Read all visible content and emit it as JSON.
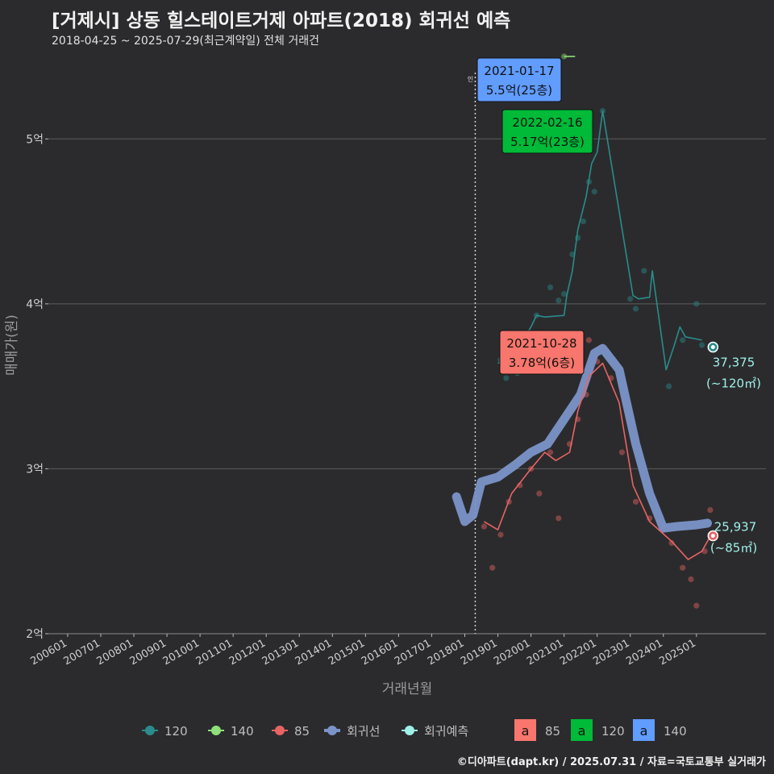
{
  "header": {
    "title": "[거제시] 상동 힐스테이트거제 아파트(2018) 회귀선 예측",
    "subtitle": "2018-04-25 ~ 2025-07-29(최근계약일) 전체 거래건"
  },
  "footer": {
    "credit": "©디아파트(dapt.kr) / 2025.07.31 / 자료=국토교통부 실거래가"
  },
  "colors": {
    "background": "#2b2b2d",
    "grid": "#5c5c5c",
    "s120": "#2a8c8c",
    "s140": "#8fe07a",
    "s85": "#e86464",
    "regression": "#7b93c8",
    "forecast": "#9ff0e8",
    "label85": "#f8766d",
    "label120": "#00ba38",
    "label140": "#619cff"
  },
  "chart_data": {
    "type": "line",
    "xlabel": "거래년월",
    "ylabel": "매매가(원)",
    "x_ticks": [
      "200601",
      "200701",
      "200801",
      "200901",
      "201001",
      "201101",
      "201201",
      "201301",
      "201401",
      "201501",
      "201601",
      "201701",
      "201801",
      "201901",
      "202001",
      "202101",
      "202201",
      "202301",
      "202401",
      "202501"
    ],
    "y_ticks": [
      "2억",
      "3억",
      "4억",
      "5억"
    ],
    "ylim": [
      20000,
      55000
    ],
    "vline_date": "2018-04-25",
    "series": [
      {
        "name": "120",
        "color": "#2a8c8c",
        "line": [
          [
            "2019-01",
            36400
          ],
          [
            "2019-06",
            36700
          ],
          [
            "2020-01",
            38600
          ],
          [
            "2020-03",
            39300
          ],
          [
            "2020-06",
            39200
          ],
          [
            "2021-01",
            39300
          ],
          [
            "2021-02",
            40500
          ],
          [
            "2021-04",
            42000
          ],
          [
            "2021-06",
            44500
          ],
          [
            "2021-09",
            46500
          ],
          [
            "2021-11",
            48500
          ],
          [
            "2022-01",
            49200
          ],
          [
            "2022-03",
            51700
          ],
          [
            "2023-02",
            40500
          ],
          [
            "2023-04",
            40300
          ],
          [
            "2023-08",
            40400
          ],
          [
            "2023-09",
            42000
          ],
          [
            "2024-02",
            36000
          ],
          [
            "2024-05",
            37500
          ],
          [
            "2024-07",
            38600
          ],
          [
            "2024-09",
            38000
          ],
          [
            "2025-03",
            37800
          ]
        ],
        "points": [
          [
            "2019-02",
            36600
          ],
          [
            "2019-04",
            35500
          ],
          [
            "2019-08",
            35800
          ],
          [
            "2020-03",
            39300
          ],
          [
            "2020-05",
            38000
          ],
          [
            "2020-08",
            41000
          ],
          [
            "2020-11",
            40200
          ],
          [
            "2021-01",
            40600
          ],
          [
            "2021-04",
            43000
          ],
          [
            "2021-06",
            44000
          ],
          [
            "2021-08",
            45000
          ],
          [
            "2021-10",
            47400
          ],
          [
            "2021-12",
            46800
          ],
          [
            "2022-03",
            51700
          ],
          [
            "2023-01",
            40300
          ],
          [
            "2023-03",
            39700
          ],
          [
            "2023-06",
            42000
          ],
          [
            "2024-03",
            35000
          ],
          [
            "2024-08",
            37800
          ],
          [
            "2025-01",
            40000
          ],
          [
            "2025-03",
            37500
          ]
        ]
      },
      {
        "name": "140",
        "color": "#8fe07a",
        "line": [
          [
            "2021-01",
            55000
          ],
          [
            "2021-05",
            55000
          ]
        ],
        "points": [
          [
            "2021-01",
            55000
          ]
        ]
      },
      {
        "name": "85",
        "color": "#e86464",
        "line": [
          [
            "2018-08",
            26800
          ],
          [
            "2019-01",
            26300
          ],
          [
            "2019-06",
            28500
          ],
          [
            "2020-01",
            30000
          ],
          [
            "2020-06",
            31000
          ],
          [
            "2020-10",
            30500
          ],
          [
            "2021-03",
            31000
          ],
          [
            "2021-06",
            33500
          ],
          [
            "2021-10",
            35600
          ],
          [
            "2022-03",
            36400
          ],
          [
            "2022-09",
            34000
          ],
          [
            "2023-02",
            29000
          ],
          [
            "2023-08",
            26800
          ],
          [
            "2024-04",
            25600
          ],
          [
            "2024-10",
            24500
          ],
          [
            "2025-03",
            25000
          ],
          [
            "2025-06",
            25900
          ]
        ],
        "points": [
          [
            "2018-08",
            26500
          ],
          [
            "2018-11",
            24000
          ],
          [
            "2019-02",
            26000
          ],
          [
            "2019-05",
            28000
          ],
          [
            "2019-09",
            29000
          ],
          [
            "2020-01",
            30000
          ],
          [
            "2020-04",
            28500
          ],
          [
            "2020-08",
            31000
          ],
          [
            "2020-11",
            27000
          ],
          [
            "2021-03",
            31500
          ],
          [
            "2021-06",
            33000
          ],
          [
            "2021-09",
            34500
          ],
          [
            "2021-10",
            37800
          ],
          [
            "2022-01",
            36500
          ],
          [
            "2022-06",
            35500
          ],
          [
            "2022-10",
            31000
          ],
          [
            "2023-03",
            28000
          ],
          [
            "2023-08",
            27000
          ],
          [
            "2024-01",
            26500
          ],
          [
            "2024-04",
            25500
          ],
          [
            "2024-08",
            24000
          ],
          [
            "2024-11",
            23300
          ],
          [
            "2025-01",
            21700
          ],
          [
            "2025-04",
            25000
          ],
          [
            "2025-06",
            27500
          ]
        ]
      },
      {
        "name": "회귀선",
        "color": "#7b93c8",
        "line": [
          [
            "2017-10",
            28300
          ],
          [
            "2018-01",
            26800
          ],
          [
            "2018-04",
            27200
          ],
          [
            "2018-07",
            29200
          ],
          [
            "2019-01",
            29500
          ],
          [
            "2019-07",
            30200
          ],
          [
            "2020-01",
            31000
          ],
          [
            "2020-07",
            31500
          ],
          [
            "2021-01",
            33000
          ],
          [
            "2021-07",
            34500
          ],
          [
            "2021-12",
            37000
          ],
          [
            "2022-03",
            37300
          ],
          [
            "2022-09",
            36000
          ],
          [
            "2023-03",
            31500
          ],
          [
            "2023-08",
            28500
          ],
          [
            "2024-01",
            26400
          ],
          [
            "2024-06",
            26500
          ],
          [
            "2025-01",
            26600
          ],
          [
            "2025-05",
            26700
          ]
        ]
      },
      {
        "name": "회귀예측",
        "color": "#9ff0e8",
        "points": []
      }
    ],
    "callouts": [
      {
        "date": "2021-01-17",
        "value": "5.5억(25층)",
        "color": "#619cff"
      },
      {
        "date": "2022-02-16",
        "value": "5.17억(23층)",
        "color": "#00ba38"
      },
      {
        "date": "2021-10-28",
        "value": "3.78억(6층)",
        "color": "#f8766d"
      }
    ],
    "forecasts": [
      {
        "value": "37,375",
        "area": "(~120㎡)",
        "y": 37375,
        "x": "2025-07"
      },
      {
        "value": "25,937",
        "area": "(~85㎡)",
        "y": 25937,
        "x": "2025-07"
      }
    ],
    "legend": {
      "position": "bottom",
      "items": [
        {
          "label": "120"
        },
        {
          "label": "140"
        },
        {
          "label": "85"
        },
        {
          "label": "회귀선"
        },
        {
          "label": "회귀예측"
        }
      ],
      "label_items": [
        {
          "glyph": "a",
          "label": "85",
          "color": "#f8766d"
        },
        {
          "glyph": "a",
          "label": "120",
          "color": "#00ba38"
        },
        {
          "glyph": "a",
          "label": "140",
          "color": "#619cff"
        }
      ]
    },
    "vline_marker": "인"
  }
}
